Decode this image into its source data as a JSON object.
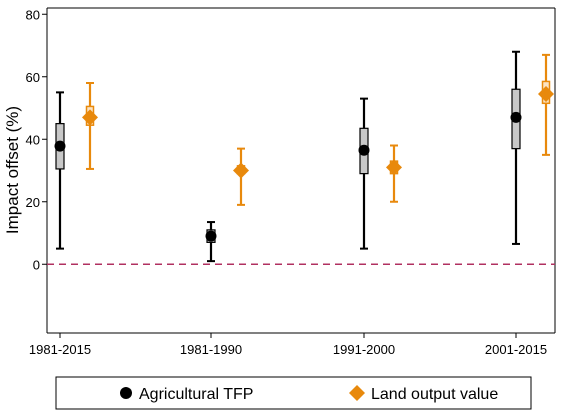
{
  "chart_data": {
    "type": "scatter",
    "title": "",
    "xlabel": "",
    "ylabel": "Impact offset (%)",
    "categories": [
      "1981-2015",
      "1981-1990",
      "1991-2000",
      "2001-2015"
    ],
    "ylim": [
      -22,
      82
    ],
    "yticks": [
      0,
      20,
      40,
      60,
      80
    ],
    "grid": false,
    "legend_position": "bottom",
    "reference_line": {
      "y": 0,
      "style": "dashed",
      "color": "#b03060"
    },
    "series": [
      {
        "name": "Agricultural TFP",
        "marker": "circle",
        "color": "#000000",
        "box_color": "#c8c8c8",
        "values": [
          37.8,
          9.0,
          36.5,
          47.0
        ],
        "ci_low": [
          5.0,
          1.0,
          5.0,
          6.5
        ],
        "ci_high": [
          55.0,
          13.5,
          53.0,
          68.0
        ],
        "box_low": [
          30.5,
          7.0,
          29.0,
          37.0
        ],
        "box_high": [
          45.0,
          11.0,
          43.5,
          56.0
        ]
      },
      {
        "name": "Land output value",
        "marker": "diamond",
        "color": "#e8890c",
        "box_color": "#e8890c",
        "values": [
          47.0,
          30.0,
          31.0,
          54.5
        ],
        "ci_low": [
          30.5,
          19.0,
          20.0,
          35.0
        ],
        "ci_high": [
          58.0,
          37.0,
          38.0,
          67.0
        ],
        "box_low": [
          44.5,
          29.0,
          29.0,
          51.5
        ],
        "box_high": [
          50.5,
          31.5,
          33.0,
          58.5
        ]
      }
    ]
  }
}
